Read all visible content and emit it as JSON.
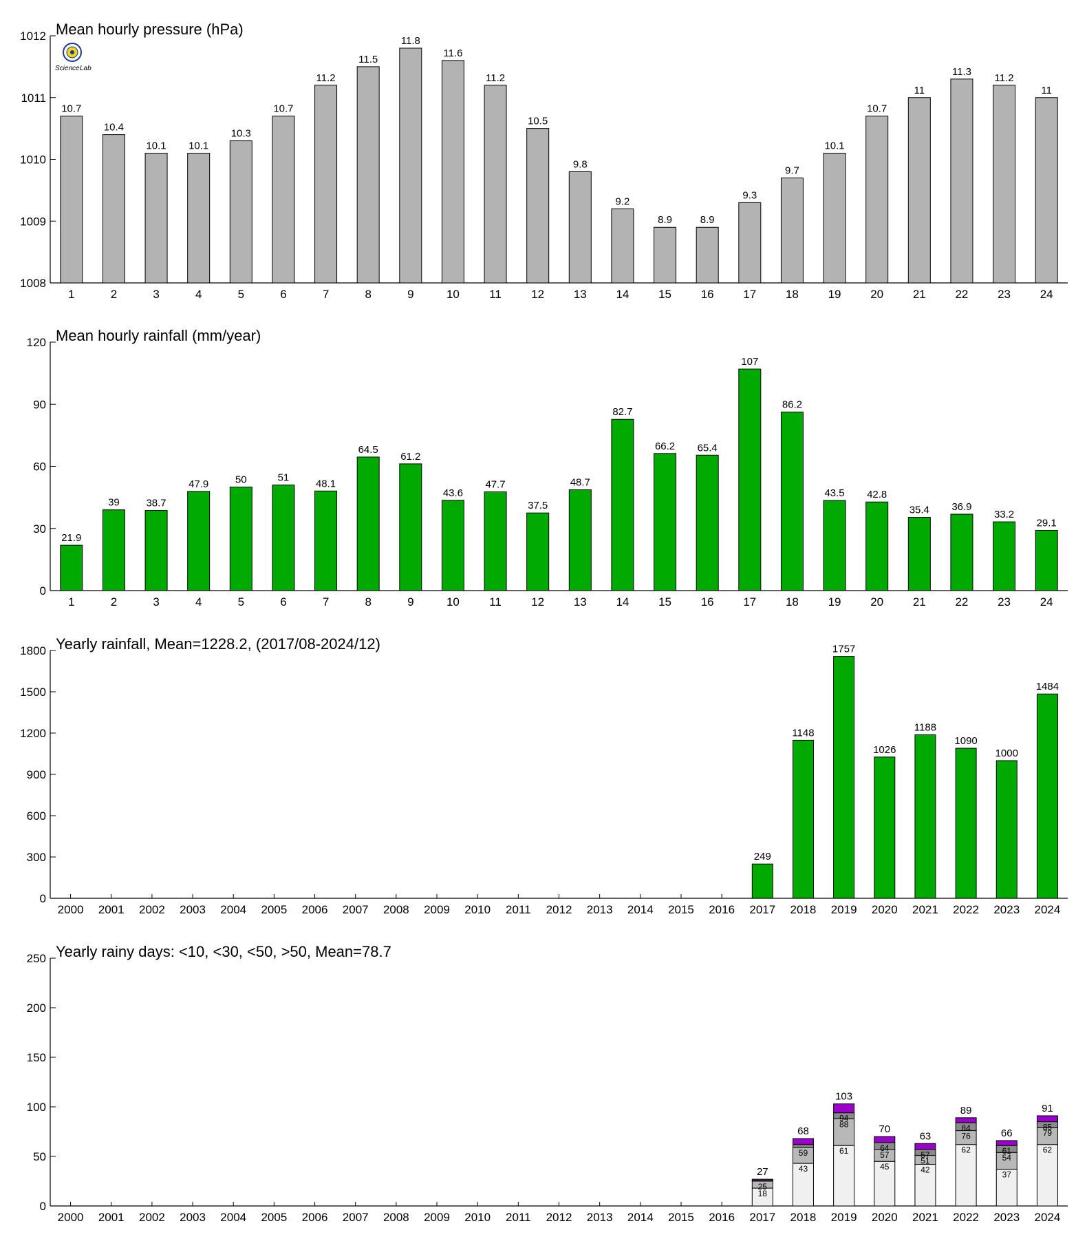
{
  "colors": {
    "pressure_bar": "#b3b3b3",
    "rain_bar": "#00aa00",
    "days_lt10": "#f0f0f0",
    "days_lt30": "#b8b8b8",
    "days_lt50": "#8a8a8a",
    "days_gt50": "#9900cc"
  },
  "logo": {
    "icon": "lab-logo-seal",
    "text": "Science Lab"
  },
  "chart_data": [
    {
      "id": "pressure",
      "type": "bar",
      "title": "Mean hourly pressure (hPa)",
      "categories": [
        "1",
        "2",
        "3",
        "4",
        "5",
        "6",
        "7",
        "8",
        "9",
        "10",
        "11",
        "12",
        "13",
        "14",
        "15",
        "16",
        "17",
        "18",
        "19",
        "20",
        "21",
        "22",
        "23",
        "24"
      ],
      "values": [
        1010.7,
        1010.4,
        1010.1,
        1010.1,
        1010.3,
        1010.7,
        1011.2,
        1011.5,
        1011.8,
        1011.6,
        1011.2,
        1010.5,
        1009.8,
        1009.2,
        1008.9,
        1008.9,
        1009.3,
        1009.7,
        1010.1,
        1010.7,
        1011,
        1011.3,
        1011.2,
        1011
      ],
      "data_labels": [
        "10.7",
        "10.4",
        "10.1",
        "10.1",
        "10.3",
        "10.7",
        "11.2",
        "11.5",
        "11.8",
        "11.6",
        "11.2",
        "10.5",
        "9.8",
        "9.2",
        "8.9",
        "8.9",
        "9.3",
        "9.7",
        "10.1",
        "10.7",
        "11",
        "11.3",
        "11.2",
        "11"
      ],
      "ylim": [
        1008,
        1012
      ],
      "yticks": [
        1008,
        1009,
        1010,
        1011,
        1012
      ]
    },
    {
      "id": "hourly-rain",
      "type": "bar",
      "title": "Mean hourly rainfall (mm/year)",
      "categories": [
        "1",
        "2",
        "3",
        "4",
        "5",
        "6",
        "7",
        "8",
        "9",
        "10",
        "11",
        "12",
        "13",
        "14",
        "15",
        "16",
        "17",
        "18",
        "19",
        "20",
        "21",
        "22",
        "23",
        "24"
      ],
      "values": [
        21.9,
        39,
        38.7,
        47.9,
        50,
        51,
        48.1,
        64.5,
        61.2,
        43.6,
        47.7,
        37.5,
        48.7,
        82.7,
        66.2,
        65.4,
        107,
        86.2,
        43.5,
        42.8,
        35.4,
        36.9,
        33.2,
        29.1
      ],
      "data_labels": [
        "21.9",
        "39",
        "38.7",
        "47.9",
        "50",
        "51",
        "48.1",
        "64.5",
        "61.2",
        "43.6",
        "47.7",
        "37.5",
        "48.7",
        "82.7",
        "66.2",
        "65.4",
        "107",
        "86.2",
        "43.5",
        "42.8",
        "35.4",
        "36.9",
        "33.2",
        "29.1"
      ],
      "ylim": [
        0,
        120
      ],
      "yticks": [
        0,
        30,
        60,
        90,
        120
      ]
    },
    {
      "id": "yearly-rain",
      "type": "bar",
      "title": "Yearly rainfall, Mean=1228.2, (2017/08-2024/12)",
      "categories": [
        "2000",
        "2001",
        "2002",
        "2003",
        "2004",
        "2005",
        "2006",
        "2007",
        "2008",
        "2009",
        "2010",
        "2011",
        "2012",
        "2013",
        "2014",
        "2015",
        "2016",
        "2017",
        "2018",
        "2019",
        "2020",
        "2021",
        "2022",
        "2023",
        "2024"
      ],
      "values": [
        null,
        null,
        null,
        null,
        null,
        null,
        null,
        null,
        null,
        null,
        null,
        null,
        null,
        null,
        null,
        null,
        null,
        249,
        1148,
        1757,
        1026,
        1188,
        1090,
        1000,
        1484
      ],
      "data_labels": [
        "",
        "",
        "",
        "",
        "",
        "",
        "",
        "",
        "",
        "",
        "",
        "",
        "",
        "",
        "",
        "",
        "",
        "249",
        "1148",
        "1757",
        "1026",
        "1188",
        "1090",
        "1000",
        "1484"
      ],
      "ylim": [
        0,
        1800
      ],
      "yticks": [
        0,
        300,
        600,
        900,
        1200,
        1500,
        1800
      ]
    },
    {
      "id": "rainy-days",
      "type": "bar",
      "stacked": true,
      "title": "Yearly rainy days: <10, <30, <50, >50, Mean=78.7",
      "categories": [
        "2000",
        "2001",
        "2002",
        "2003",
        "2004",
        "2005",
        "2006",
        "2007",
        "2008",
        "2009",
        "2010",
        "2011",
        "2012",
        "2013",
        "2014",
        "2015",
        "2016",
        "2017",
        "2018",
        "2019",
        "2020",
        "2021",
        "2022",
        "2023",
        "2024"
      ],
      "series": [
        {
          "name": "<10",
          "cumulative": [
            null,
            null,
            null,
            null,
            null,
            null,
            null,
            null,
            null,
            null,
            null,
            null,
            null,
            null,
            null,
            null,
            null,
            18,
            43,
            61,
            45,
            42,
            62,
            37,
            62
          ]
        },
        {
          "name": "<30",
          "cumulative": [
            null,
            null,
            null,
            null,
            null,
            null,
            null,
            null,
            null,
            null,
            null,
            null,
            null,
            null,
            null,
            null,
            null,
            25,
            59,
            88,
            57,
            51,
            76,
            54,
            79
          ]
        },
        {
          "name": "<50",
          "cumulative": [
            null,
            null,
            null,
            null,
            null,
            null,
            null,
            null,
            null,
            null,
            null,
            null,
            null,
            null,
            null,
            null,
            null,
            26,
            62,
            94,
            64,
            57,
            84,
            61,
            85
          ]
        },
        {
          "name": ">50",
          "cumulative": [
            null,
            null,
            null,
            null,
            null,
            null,
            null,
            null,
            null,
            null,
            null,
            null,
            null,
            null,
            null,
            null,
            null,
            27,
            68,
            103,
            70,
            63,
            89,
            66,
            91
          ]
        }
      ],
      "segment_labels": [
        [
          "",
          "",
          ""
        ],
        [
          "",
          "",
          ""
        ],
        [
          "",
          "",
          ""
        ],
        [
          "",
          "",
          ""
        ],
        [
          "",
          "",
          ""
        ],
        [
          "",
          "",
          ""
        ],
        [
          "",
          "",
          ""
        ],
        [
          "",
          "",
          ""
        ],
        [
          "",
          "",
          ""
        ],
        [
          "",
          "",
          ""
        ],
        [
          "",
          "",
          ""
        ],
        [
          "",
          "",
          ""
        ],
        [
          "",
          "",
          ""
        ],
        [
          "",
          "",
          ""
        ],
        [
          "",
          "",
          ""
        ],
        [
          "",
          "",
          ""
        ],
        [
          "",
          "",
          ""
        ],
        [
          "18",
          "25",
          ""
        ],
        [
          "43",
          "59",
          ""
        ],
        [
          "61",
          "88",
          "94"
        ],
        [
          "45",
          "57",
          "64"
        ],
        [
          "42",
          "51",
          "57"
        ],
        [
          "62",
          "76",
          "84"
        ],
        [
          "37",
          "54",
          "61"
        ],
        [
          "62",
          "79",
          "85"
        ]
      ],
      "totals": [
        "",
        "",
        "",
        "",
        "",
        "",
        "",
        "",
        "",
        "",
        "",
        "",
        "",
        "",
        "",
        "",
        "",
        "27",
        "68",
        "103",
        "70",
        "63",
        "89",
        "66",
        "91"
      ],
      "ylim": [
        0,
        250
      ],
      "yticks": [
        0,
        50,
        100,
        150,
        200,
        250
      ]
    }
  ]
}
